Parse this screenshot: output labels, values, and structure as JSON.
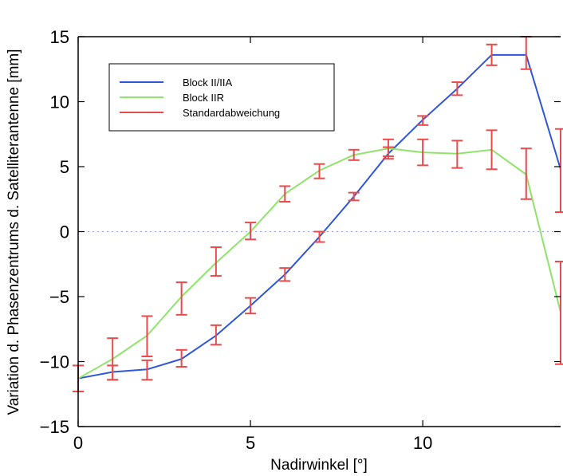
{
  "chart_data": {
    "type": "line",
    "title": "",
    "xlabel": "Nadirwinkel [°]",
    "ylabel": "Variation d. Phasenzentrums d. Satelliterantenne [mm]",
    "xlim": [
      0,
      14
    ],
    "ylim": [
      -15,
      15
    ],
    "x_ticks": [
      0,
      5,
      10
    ],
    "y_ticks": [
      -15,
      -10,
      -5,
      0,
      5,
      10,
      15
    ],
    "grid": false,
    "zero_line": true,
    "legend_position": "top-left",
    "x": [
      0,
      1,
      2,
      3,
      4,
      5,
      6,
      7,
      8,
      9,
      10,
      11,
      12,
      13,
      14
    ],
    "series": [
      {
        "name": "Block II/IIA",
        "color": "#2f56d6",
        "values": [
          -11.3,
          -10.8,
          -10.6,
          -9.8,
          -8.0,
          -5.7,
          -3.3,
          -0.4,
          2.7,
          6.0,
          8.6,
          11.0,
          13.6,
          13.6,
          4.8
        ]
      },
      {
        "name": "Block IIR",
        "color": "#8fe36a",
        "values": [
          -11.3,
          -9.8,
          -8.0,
          -5.0,
          -2.4,
          0.0,
          2.9,
          4.7,
          5.9,
          6.4,
          6.1,
          6.0,
          6.3,
          4.4,
          -6.2
        ]
      }
    ],
    "errorbars": {
      "name": "Standardabweichung",
      "color": "#e84b4b",
      "items": [
        {
          "x": 0,
          "low": -12.3,
          "high": -10.3
        },
        {
          "x": 1,
          "low": -11.4,
          "high": -10.3
        },
        {
          "x": 1,
          "low": -11.4,
          "high": -8.2
        },
        {
          "x": 2,
          "low": -11.4,
          "high": -9.9
        },
        {
          "x": 2,
          "low": -9.6,
          "high": -6.5
        },
        {
          "x": 3,
          "low": -10.4,
          "high": -9.1
        },
        {
          "x": 3,
          "low": -6.4,
          "high": -3.9
        },
        {
          "x": 4,
          "low": -8.7,
          "high": -7.2
        },
        {
          "x": 4,
          "low": -3.4,
          "high": -1.2
        },
        {
          "x": 5,
          "low": -6.3,
          "high": -5.1
        },
        {
          "x": 5,
          "low": -0.6,
          "high": 0.7
        },
        {
          "x": 6,
          "low": -3.8,
          "high": -2.8
        },
        {
          "x": 6,
          "low": 2.3,
          "high": 3.5
        },
        {
          "x": 7,
          "low": -0.8,
          "high": 0.0
        },
        {
          "x": 7,
          "low": 4.1,
          "high": 5.2
        },
        {
          "x": 8,
          "low": 2.4,
          "high": 3.0
        },
        {
          "x": 8,
          "low": 5.5,
          "high": 6.3
        },
        {
          "x": 9,
          "low": 5.6,
          "high": 6.5
        },
        {
          "x": 9,
          "low": 5.8,
          "high": 7.1
        },
        {
          "x": 10,
          "low": 8.2,
          "high": 8.9
        },
        {
          "x": 10,
          "low": 5.1,
          "high": 7.1
        },
        {
          "x": 11,
          "low": 10.5,
          "high": 11.5
        },
        {
          "x": 11,
          "low": 4.9,
          "high": 7.0
        },
        {
          "x": 12,
          "low": 12.8,
          "high": 14.4
        },
        {
          "x": 12,
          "low": 4.8,
          "high": 7.8
        },
        {
          "x": 13,
          "low": 12.5,
          "high": 15.0
        },
        {
          "x": 13,
          "low": 2.5,
          "high": 6.4
        },
        {
          "x": 14,
          "low": 1.5,
          "high": 7.9
        },
        {
          "x": 14,
          "low": -10.2,
          "high": -2.3
        }
      ]
    },
    "legend": [
      "Block II/IIA",
      "Block IIR",
      "Standardabweichung"
    ]
  }
}
